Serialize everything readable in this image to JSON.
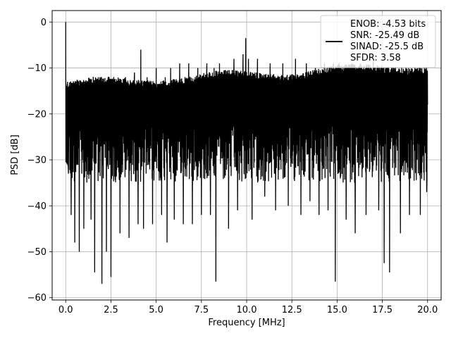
{
  "chart_data": {
    "type": "line",
    "title": "",
    "xlabel": "Frequency [MHz]",
    "ylabel": "PSD [dB]",
    "xlim": [
      -0.75,
      20.75
    ],
    "ylim": [
      -60.5,
      2.5
    ],
    "xticks": [
      0.0,
      2.5,
      5.0,
      7.5,
      10.0,
      12.5,
      15.0,
      17.5,
      20.0
    ],
    "xtick_labels": [
      "0.0",
      "2.5",
      "5.0",
      "7.5",
      "10.0",
      "12.5",
      "15.0",
      "17.5",
      "20.0"
    ],
    "yticks": [
      0,
      -10,
      -20,
      -30,
      -40,
      -50,
      -60
    ],
    "ytick_labels": [
      "0",
      "−10",
      "−20",
      "−30",
      "−40",
      "−50",
      "−60"
    ],
    "grid": true,
    "legend_position": "top-right",
    "series": [
      {
        "name": "ENOB: -4.53 bits\nSNR: -25.49 dB\nSINAD: -25.5 dB\nSFDR: 3.58",
        "color": "#000000",
        "style": "dense noise spectrum",
        "points": [
          [
            0.0,
            0.0
          ],
          [
            0.05,
            -27
          ],
          [
            0.1,
            -13
          ],
          [
            0.15,
            -33
          ],
          [
            0.25,
            -14
          ],
          [
            0.3,
            -42
          ],
          [
            0.4,
            -17
          ],
          [
            0.5,
            -48
          ],
          [
            0.6,
            -15
          ],
          [
            0.75,
            -50
          ],
          [
            0.9,
            -14
          ],
          [
            1.0,
            -45
          ],
          [
            1.2,
            -13
          ],
          [
            1.4,
            -43
          ],
          [
            1.5,
            -14
          ],
          [
            1.6,
            -54.5
          ],
          [
            1.8,
            -12
          ],
          [
            2.0,
            -57
          ],
          [
            2.1,
            -13
          ],
          [
            2.25,
            -50
          ],
          [
            2.4,
            -12
          ],
          [
            2.5,
            -55.5
          ],
          [
            2.7,
            -13
          ],
          [
            3.0,
            -46
          ],
          [
            3.3,
            -12
          ],
          [
            3.5,
            -47
          ],
          [
            3.8,
            -11
          ],
          [
            4.0,
            -44
          ],
          [
            4.15,
            -6
          ],
          [
            4.3,
            -45
          ],
          [
            4.5,
            -12
          ],
          [
            4.8,
            -44
          ],
          [
            5.0,
            -10
          ],
          [
            5.3,
            -42
          ],
          [
            5.5,
            -12
          ],
          [
            5.6,
            -48
          ],
          [
            5.8,
            -10
          ],
          [
            6.0,
            -43
          ],
          [
            6.3,
            -9
          ],
          [
            6.5,
            -44
          ],
          [
            6.8,
            -9
          ],
          [
            7.0,
            -44
          ],
          [
            7.3,
            -10
          ],
          [
            7.5,
            -42
          ],
          [
            7.8,
            -9
          ],
          [
            8.0,
            -42
          ],
          [
            8.2,
            -10
          ],
          [
            8.3,
            -56.5
          ],
          [
            8.5,
            -9
          ],
          [
            9.0,
            -45
          ],
          [
            9.3,
            -8
          ],
          [
            9.5,
            -41
          ],
          [
            9.8,
            -7
          ],
          [
            9.95,
            -3.5
          ],
          [
            10.1,
            -8
          ],
          [
            10.3,
            -43
          ],
          [
            10.6,
            -8
          ],
          [
            11.0,
            -38
          ],
          [
            11.3,
            -9
          ],
          [
            11.6,
            -41
          ],
          [
            12.0,
            -9
          ],
          [
            12.3,
            -40
          ],
          [
            12.7,
            -8
          ],
          [
            13.0,
            -42
          ],
          [
            13.3,
            -9
          ],
          [
            13.5,
            -39
          ],
          [
            13.8,
            -10
          ],
          [
            14.0,
            -42
          ],
          [
            14.3,
            -9
          ],
          [
            14.5,
            -41
          ],
          [
            14.8,
            -9
          ],
          [
            14.9,
            -56.5
          ],
          [
            15.1,
            -9
          ],
          [
            15.5,
            -43
          ],
          [
            15.8,
            -9
          ],
          [
            16.0,
            -46
          ],
          [
            16.3,
            -9
          ],
          [
            16.6,
            -42
          ],
          [
            17.0,
            -8
          ],
          [
            17.3,
            -41
          ],
          [
            17.5,
            -10
          ],
          [
            17.6,
            -52.5
          ],
          [
            17.8,
            -10
          ],
          [
            17.9,
            -54.5
          ],
          [
            18.1,
            -10
          ],
          [
            18.5,
            -46
          ],
          [
            18.8,
            -10
          ],
          [
            19.0,
            -42
          ],
          [
            19.3,
            -10
          ],
          [
            19.6,
            -42
          ],
          [
            19.8,
            -11
          ],
          [
            19.95,
            -37
          ],
          [
            20.0,
            -18
          ]
        ]
      }
    ],
    "legend_lines": [
      "ENOB: -4.53 bits",
      "SNR: -25.49 dB",
      "SINAD: -25.5 dB",
      "SFDR: 3.58"
    ]
  }
}
